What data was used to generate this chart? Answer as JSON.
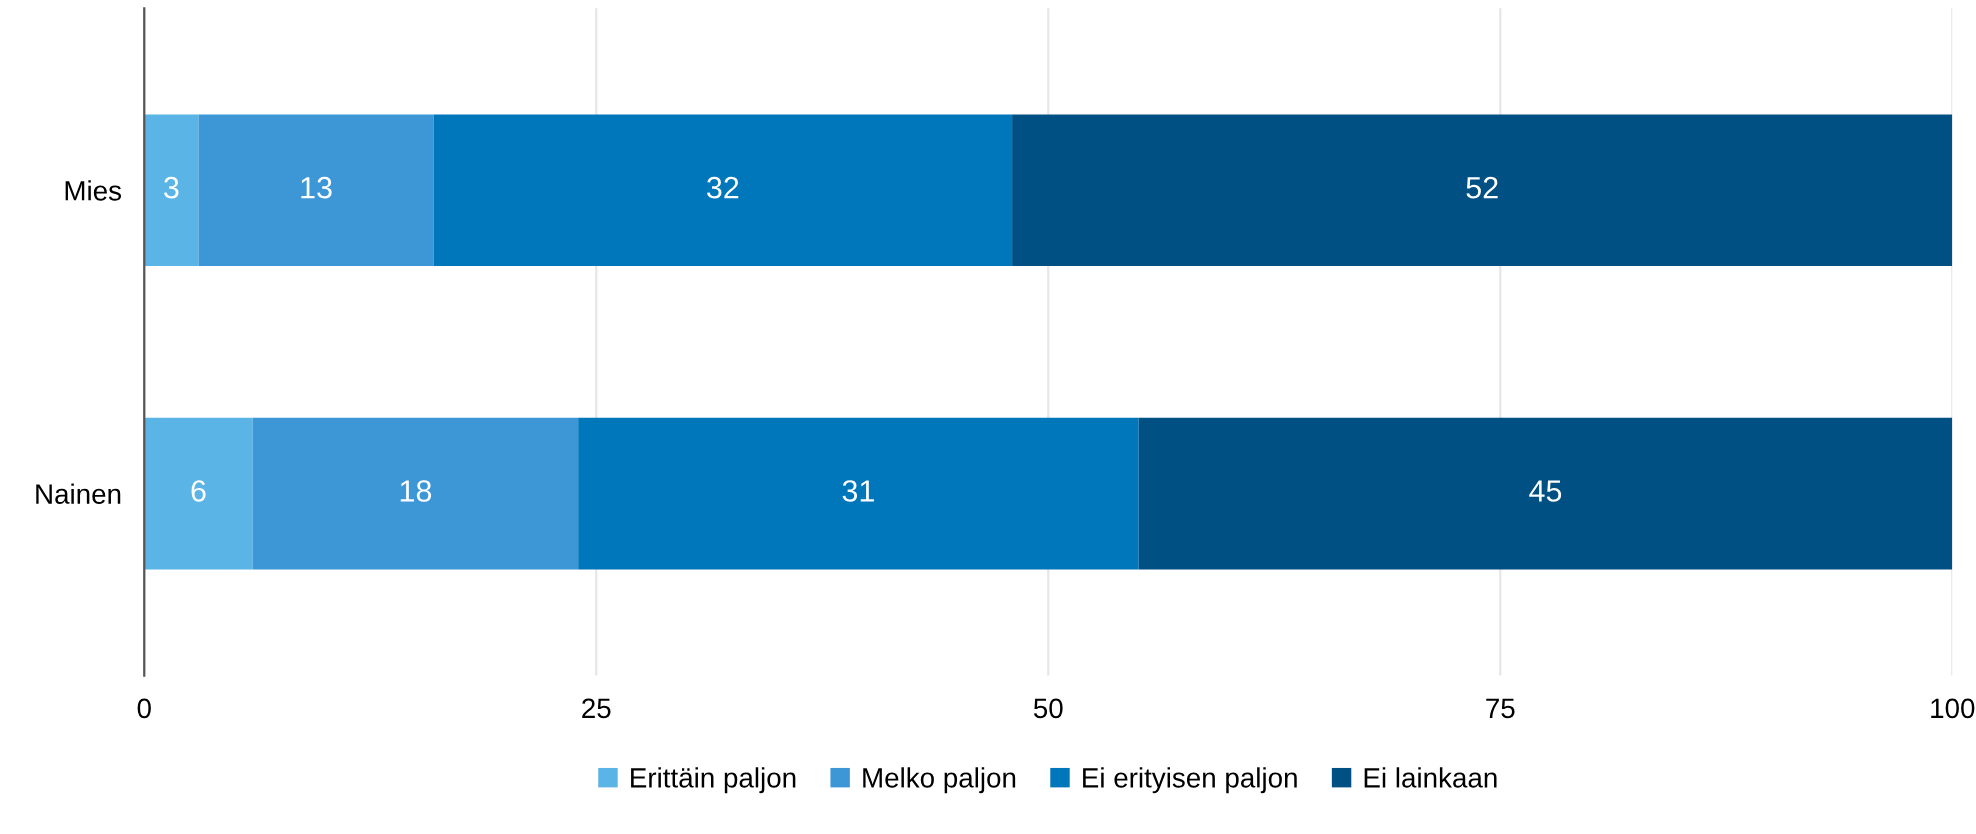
{
  "chart_data": {
    "type": "bar",
    "orientation": "horizontal",
    "stacked": true,
    "categories": [
      "Mies",
      "Nainen"
    ],
    "series": [
      {
        "name": "Erittäin paljon",
        "color": "#5ab4e6",
        "values": [
          3,
          6
        ]
      },
      {
        "name": "Melko paljon",
        "color": "#3d97d6",
        "values": [
          13,
          18
        ]
      },
      {
        "name": "Ei erityisen paljon",
        "color": "#0077bb",
        "values": [
          32,
          31
        ]
      },
      {
        "name": "Ei lainkaan",
        "color": "#005084",
        "values": [
          52,
          45
        ]
      }
    ],
    "xlim": [
      0,
      100
    ],
    "xticks": [
      0,
      25,
      50,
      75,
      100
    ],
    "grid": "x",
    "legend": "bottom",
    "data_labels": true
  }
}
